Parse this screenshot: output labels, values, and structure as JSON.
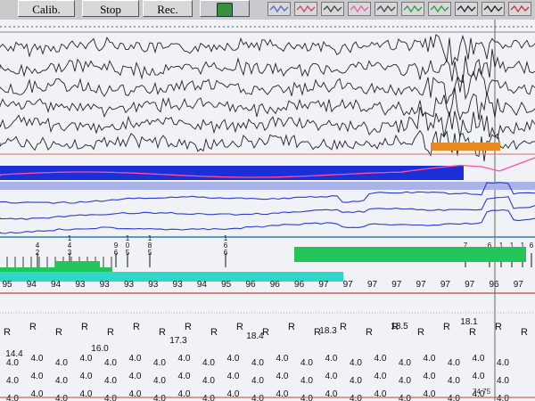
{
  "toolbar": {
    "calib_label": "Calib.",
    "stop_label": "Stop",
    "rec_label": "Rec.",
    "montage_icons": [
      "montage-1-icon",
      "montage-2-icon",
      "montage-3-icon",
      "montage-4-icon",
      "montage-5-icon",
      "montage-6-icon",
      "montage-7-icon",
      "montage-8-icon",
      "montage-9-icon",
      "montage-10-icon"
    ]
  },
  "spo2_values": [
    "95",
    "94",
    "94",
    "93",
    "93",
    "93",
    "93",
    "93",
    "94",
    "95",
    "96",
    "96",
    "96",
    "97",
    "97",
    "97",
    "97",
    "97",
    "97",
    "97",
    "96",
    "97"
  ],
  "stacked_marks": [
    {
      "text": "4\n2"
    },
    {
      "text": "1\n4\n3"
    },
    {
      "text": "9\n6"
    },
    {
      "text": "1\n0\n5"
    },
    {
      "text": "1\n8\n5"
    },
    {
      "text": "1\n6\n6"
    },
    {
      "text": "7"
    },
    {
      "text": "6\n7"
    },
    {
      "text": "1\n6"
    },
    {
      "text": "1\n5"
    },
    {
      "text": "1\n9"
    },
    {
      "text": "6"
    }
  ],
  "r_label": "R",
  "interval_values": [
    "14.4",
    "16.0",
    "17.3",
    "18.4",
    "18.3",
    "18.5",
    "18.1"
  ],
  "amp_value": "4.0",
  "footer_value": "74 75",
  "colors": {
    "blue_band": "#1a2fd6",
    "light_band": "#a9b3e8",
    "orange_marker": "#e58a1f",
    "green_bar": "#23c45a",
    "cyan_bar": "#2fd7c9",
    "trace_dark": "#222222",
    "trace_blue": "#2b3bd0",
    "trace_pink": "#ff4fa0"
  }
}
